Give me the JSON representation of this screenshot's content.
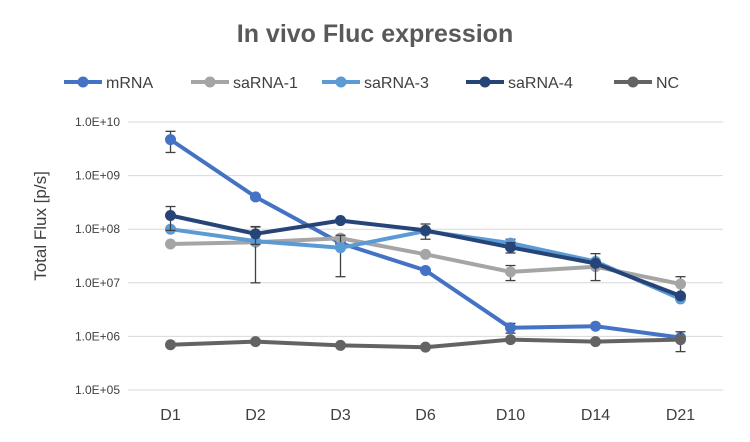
{
  "chart_data": {
    "type": "line",
    "title": "In vivo Fluc expression",
    "xlabel": "",
    "ylabel": "Total Flux [p/s]",
    "yscale": "log",
    "ylim": [
      100000,
      10000000000
    ],
    "yticks": [
      "1.0E+05",
      "1.0E+06",
      "1.0E+07",
      "1.0E+08",
      "1.0E+09",
      "1.0E+10"
    ],
    "grid": true,
    "legend_position": "top",
    "categories": [
      "D1",
      "D2",
      "D3",
      "D6",
      "D10",
      "D14",
      "D21"
    ],
    "series": [
      {
        "name": "mRNA",
        "color": "#4472c4",
        "values": [
          4700000000,
          400000000,
          55000000,
          17000000,
          1450000,
          1550000,
          950000
        ],
        "err": [
          2000000000,
          40000000,
          0,
          0,
          300000,
          0,
          0
        ]
      },
      {
        "name": "saRNA-1",
        "color": "#a5a5a5",
        "values": [
          53000000,
          57000000,
          68000000,
          34000000,
          16000000,
          20000000,
          9500000
        ],
        "err": [
          0,
          0,
          0,
          0,
          5000000,
          0,
          3500000
        ]
      },
      {
        "name": "saRNA-3",
        "color": "#5b9bd5",
        "values": [
          100000000,
          60000000,
          45000000,
          92000000,
          55000000,
          25000000,
          5000000
        ],
        "err": [
          0,
          50000000,
          32000000,
          0,
          10000000,
          0,
          0
        ]
      },
      {
        "name": "saRNA-4",
        "color": "#264478",
        "values": [
          180000000,
          82000000,
          145000000,
          95000000,
          46000000,
          23000000,
          5700000
        ],
        "err": [
          85000000,
          30000000,
          0,
          30000000,
          10000000,
          12000000,
          0
        ]
      },
      {
        "name": "NC",
        "color": "#636363",
        "values": [
          700000,
          800000,
          680000,
          630000,
          870000,
          800000,
          870000
        ],
        "err": [
          0,
          0,
          0,
          0,
          0,
          0,
          350000
        ]
      }
    ]
  }
}
